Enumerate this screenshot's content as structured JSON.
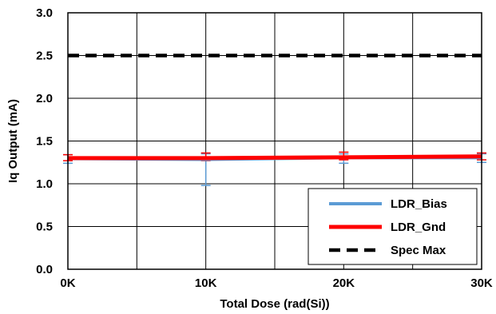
{
  "chart_data": {
    "type": "line",
    "xlabel": "Total Dose (rad(Si))",
    "ylabel": "Iq Output (mA)",
    "x": [
      0,
      10000,
      20000,
      30000
    ],
    "x_tick_values": [
      0,
      10000,
      20000,
      30000
    ],
    "x_tick_labels": [
      "0K",
      "10K",
      "20K",
      "30K"
    ],
    "xlim": [
      0,
      30000
    ],
    "ylim": [
      0,
      3
    ],
    "y_tick_values": [
      0,
      0.5,
      1,
      1.5,
      2,
      2.5,
      3
    ],
    "y_tick_labels": [
      "0.0",
      "0.5",
      "1.0",
      "1.5",
      "2.0",
      "2.5",
      "3.0"
    ],
    "grid": true,
    "legend_position": "bottom-right",
    "series": [
      {
        "name": "LDR_Bias",
        "color": "#5b9bd5",
        "dash": "solid",
        "values": [
          1.29,
          1.28,
          1.3,
          1.3
        ],
        "error_low": [
          1.24,
          0.98,
          1.24,
          1.25
        ],
        "error_high": [
          1.34,
          1.35,
          1.35,
          1.35
        ]
      },
      {
        "name": "LDR_Gnd",
        "color": "#ff0000",
        "dash": "solid",
        "values": [
          1.3,
          1.3,
          1.31,
          1.32
        ],
        "error_low": [
          1.27,
          1.27,
          1.28,
          1.28
        ],
        "error_high": [
          1.34,
          1.36,
          1.37,
          1.36
        ]
      },
      {
        "name": "Spec Max",
        "color": "#000000",
        "dash": "dashed",
        "values": [
          2.5,
          2.5,
          2.5,
          2.5
        ]
      }
    ]
  }
}
